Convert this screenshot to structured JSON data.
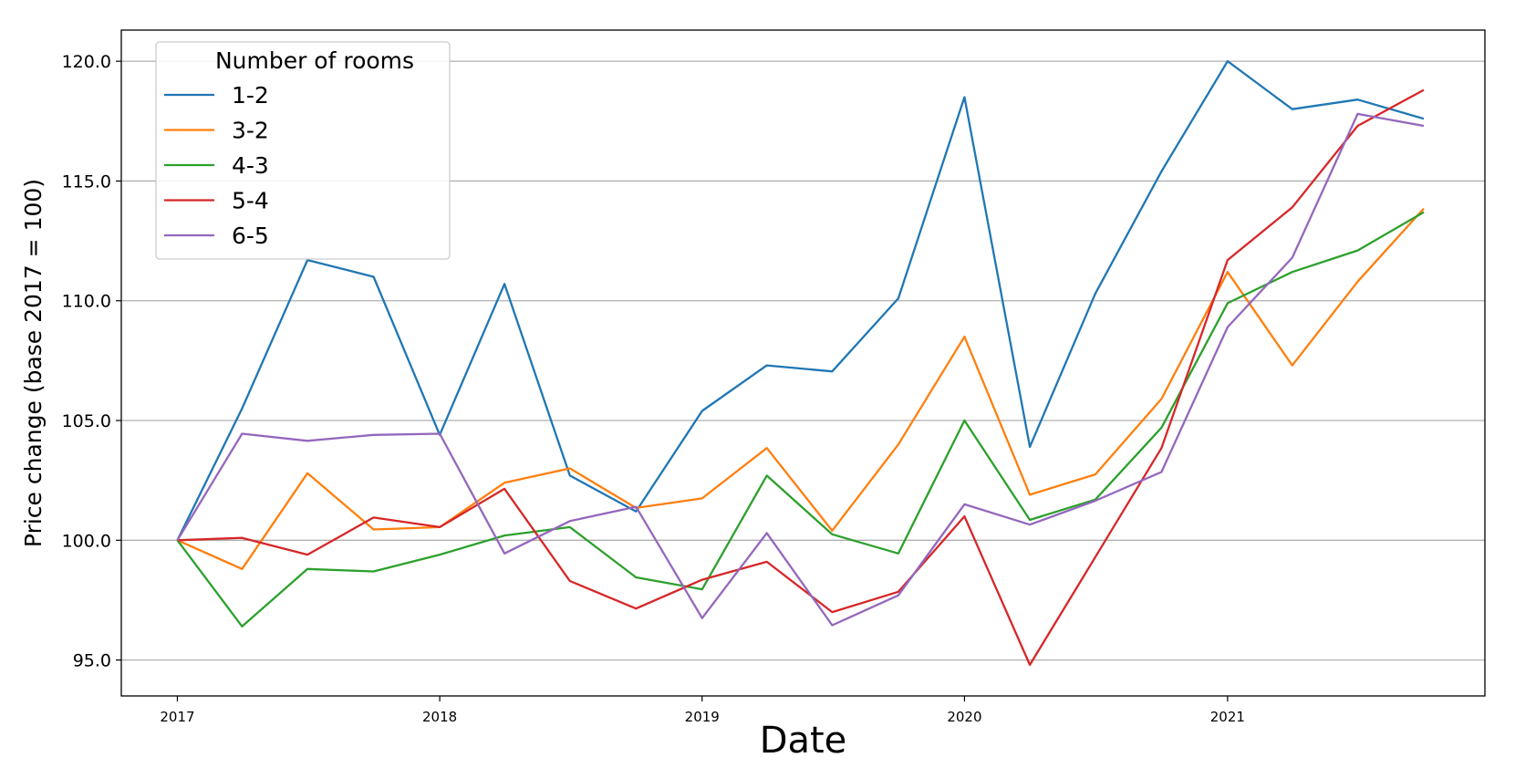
{
  "chart_data": {
    "type": "line",
    "xlabel": "Date",
    "ylabel": "Price change (base 2017 = 100)",
    "x": [
      "2017-01",
      "2017-04",
      "2017-07",
      "2017-10",
      "2018-01",
      "2018-04",
      "2018-07",
      "2018-10",
      "2019-01",
      "2019-04",
      "2019-07",
      "2019-10",
      "2020-01",
      "2020-04",
      "2020-07",
      "2020-10",
      "2021-01",
      "2021-04",
      "2021-07",
      "2021-10"
    ],
    "xlim": [
      "2016-10-15",
      "2021-12-25"
    ],
    "ylim": [
      93.5,
      121.3
    ],
    "x_ticks": [
      {
        "date": "2017-01",
        "label": "2017"
      },
      {
        "date": "2018-01",
        "label": "2018"
      },
      {
        "date": "2019-01",
        "label": "2019"
      },
      {
        "date": "2020-01",
        "label": "2020"
      },
      {
        "date": "2021-01",
        "label": "2021"
      }
    ],
    "y_ticks": [
      95.0,
      100.0,
      105.0,
      110.0,
      115.0,
      120.0
    ],
    "y_tick_labels": [
      "95.0",
      "100.0",
      "105.0",
      "110.0",
      "115.0",
      "120.0"
    ],
    "grid": "horizontal",
    "legend": {
      "title": "Number of rooms",
      "position": "top-left"
    },
    "series": [
      {
        "name": "1-2",
        "color": "#1f77b4",
        "values": [
          100.0,
          105.5,
          111.7,
          111.0,
          104.4,
          110.7,
          102.7,
          101.2,
          105.4,
          107.3,
          107.05,
          110.1,
          118.5,
          103.9,
          110.3,
          115.4,
          120.0,
          118.0,
          118.4,
          117.6
        ]
      },
      {
        "name": "3-2",
        "color": "#ff7f0e",
        "values": [
          100.0,
          98.8,
          102.8,
          100.45,
          100.55,
          102.4,
          103.0,
          101.35,
          101.75,
          103.85,
          100.4,
          104.0,
          108.5,
          101.9,
          102.75,
          105.9,
          111.2,
          107.3,
          110.8,
          113.85
        ]
      },
      {
        "name": "4-3",
        "color": "#2ca02c",
        "values": [
          100.0,
          96.4,
          98.8,
          98.7,
          99.4,
          100.2,
          100.55,
          98.45,
          97.95,
          102.7,
          100.25,
          99.45,
          105.0,
          100.85,
          101.7,
          104.7,
          109.9,
          111.2,
          112.1,
          113.7
        ]
      },
      {
        "name": "5-4",
        "color": "#d62728",
        "values": [
          100.0,
          100.1,
          99.4,
          100.95,
          100.55,
          102.15,
          98.3,
          97.15,
          98.35,
          99.1,
          97.0,
          97.85,
          101.0,
          94.8,
          99.3,
          103.85,
          111.7,
          113.9,
          117.3,
          118.8
        ]
      },
      {
        "name": "6-5",
        "color": "#9467bd",
        "values": [
          100.0,
          104.45,
          104.15,
          104.4,
          104.45,
          99.45,
          100.8,
          101.4,
          96.75,
          100.3,
          96.45,
          97.7,
          101.5,
          100.65,
          101.65,
          102.85,
          108.9,
          111.8,
          117.8,
          117.3
        ]
      }
    ]
  }
}
